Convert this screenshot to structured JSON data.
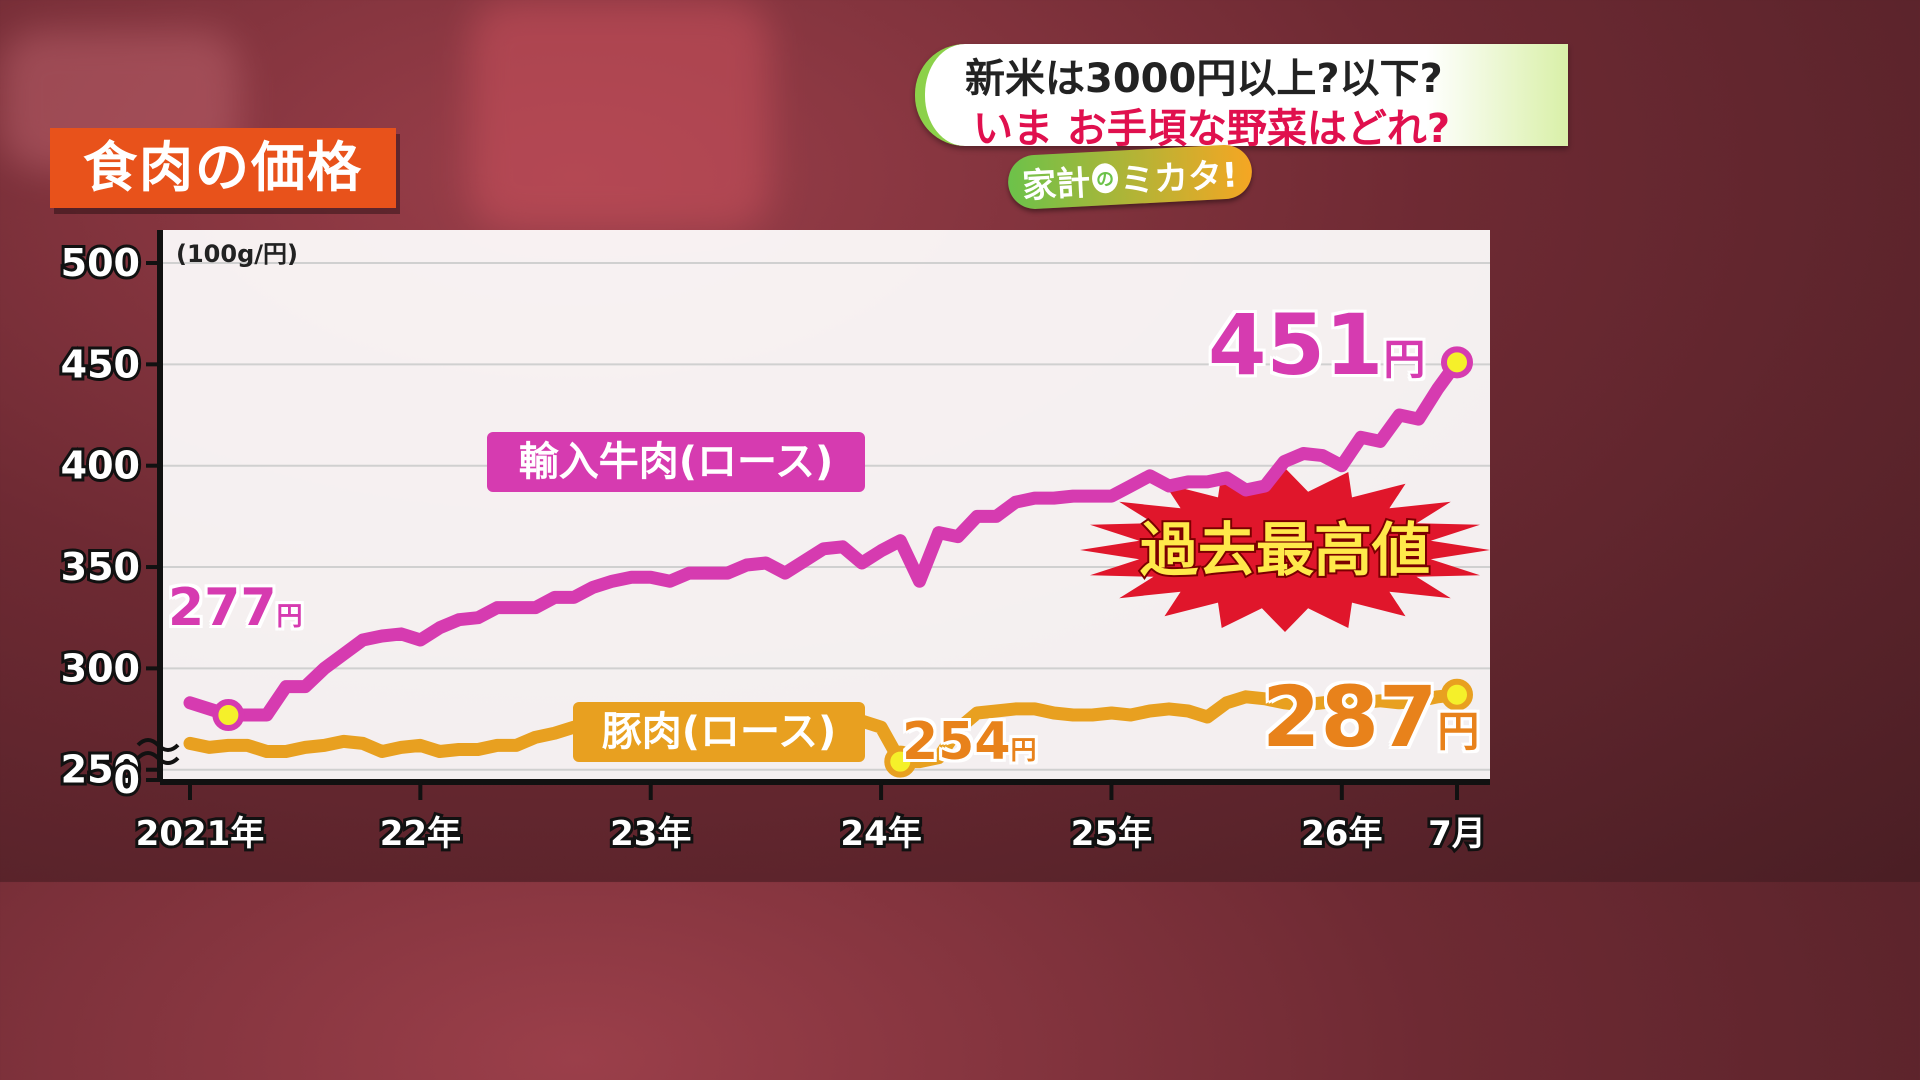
{
  "header": {
    "title": "食肉の価格",
    "banner_line1": "新米は3000円以上?以下?",
    "banner_line2": "いま お手頃な野菜はどれ?",
    "logo_a": "家計",
    "logo_b": "の",
    "logo_c": "ミカタ!"
  },
  "chart_data": {
    "type": "line",
    "ylabel": "(100g/円)",
    "yticks": [
      "500",
      "450",
      "400",
      "350",
      "300",
      "250",
      "0"
    ],
    "ylim": [
      240,
      505
    ],
    "y_axis_break": true,
    "xticks": [
      "2021年",
      "22年",
      "23年",
      "24年",
      "25年",
      "26年",
      "7月"
    ],
    "xtick_positions": [
      0,
      12,
      24,
      36,
      48,
      60,
      66
    ],
    "grid": true,
    "series": [
      {
        "name": "輸入牛肉(ロース)",
        "color": "#d63bb0",
        "x": [
          0,
          2,
          4,
          5,
          6,
          7,
          8,
          9,
          10,
          11,
          12,
          13,
          14,
          15,
          16,
          17,
          18,
          19,
          20,
          21,
          22,
          23,
          24,
          25,
          26,
          27,
          28,
          29,
          30,
          31,
          32,
          33,
          34,
          35,
          36,
          37,
          38,
          39,
          40,
          41,
          42,
          43,
          44,
          45,
          46,
          47,
          48,
          49,
          50,
          51,
          52,
          53,
          54,
          55,
          56,
          57,
          58,
          59,
          60,
          61,
          62,
          63,
          64,
          65,
          66
        ],
        "values": [
          283,
          277,
          277,
          291,
          291,
          300,
          307,
          314,
          316,
          317,
          314,
          320,
          324,
          325,
          330,
          330,
          330,
          335,
          335,
          340,
          343,
          345,
          345,
          343,
          347,
          347,
          347,
          351,
          352,
          347,
          353,
          359,
          360,
          352,
          358,
          363,
          343,
          367,
          365,
          375,
          375,
          382,
          384,
          384,
          385,
          385,
          385,
          390,
          395,
          390,
          392,
          392,
          394,
          388,
          390,
          402,
          406,
          405,
          400,
          414,
          412,
          425,
          423,
          438,
          451
        ]
      },
      {
        "name": "豚肉(ロース)",
        "color": "#e8a020",
        "x": [
          0,
          1,
          2,
          3,
          4,
          5,
          6,
          7,
          8,
          9,
          10,
          11,
          12,
          13,
          14,
          15,
          16,
          17,
          18,
          19,
          20,
          21,
          22,
          23,
          24,
          25,
          26,
          27,
          28,
          29,
          30,
          31,
          32,
          33,
          34,
          35,
          36,
          37,
          38,
          39,
          40,
          41,
          42,
          43,
          44,
          45,
          46,
          47,
          48,
          49,
          50,
          51,
          52,
          53,
          54,
          55,
          56,
          57,
          58,
          59,
          60,
          61,
          62,
          63,
          64,
          65,
          66
        ],
        "values": [
          263,
          261,
          262,
          262,
          259,
          259,
          261,
          262,
          264,
          263,
          259,
          261,
          262,
          259,
          260,
          260,
          262,
          262,
          266,
          268,
          271,
          272,
          273,
          273,
          274,
          271,
          273,
          273,
          272,
          274,
          275,
          278,
          277,
          275,
          273,
          274,
          271,
          254,
          254,
          256,
          270,
          278,
          279,
          280,
          280,
          278,
          277,
          277,
          278,
          277,
          279,
          280,
          279,
          276,
          283,
          286,
          285,
          283,
          282,
          283,
          284,
          283,
          284,
          283,
          284,
          286,
          287
        ]
      }
    ],
    "annotations": [
      {
        "text": "277",
        "unit": "円",
        "series": "輸入牛肉(ロース)",
        "x": 2,
        "y": 277
      },
      {
        "text": "451",
        "unit": "円",
        "series": "輸入牛肉(ロース)",
        "x": 66,
        "y": 451
      },
      {
        "text": "254",
        "unit": "円",
        "series": "豚肉(ロース)",
        "x": 37,
        "y": 254
      },
      {
        "text": "287",
        "unit": "円",
        "series": "豚肉(ロース)",
        "x": 66,
        "y": 287
      },
      {
        "text": "過去最高値"
      }
    ],
    "marker_color": "#f5f02a"
  },
  "legend": {
    "beef_label": "輸入牛肉(ロース)",
    "pork_label": "豚肉(ロース)"
  },
  "callouts": {
    "beef_start_value": "277",
    "beef_end_value": "451",
    "pork_low_value": "254",
    "pork_end_value": "287",
    "unit": "円",
    "record_high": "過去最高値"
  }
}
